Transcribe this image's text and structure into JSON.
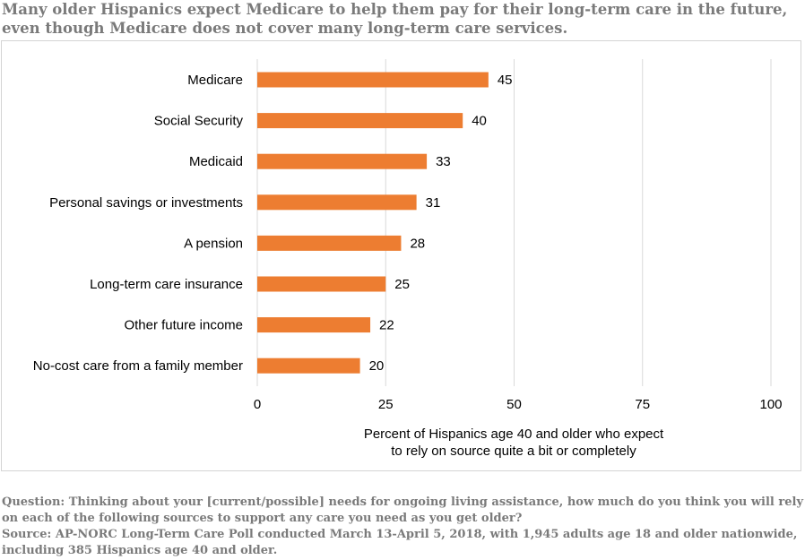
{
  "title": "Many older Hispanics expect Medicare to help them pay for their long-term care in the future, even though Medicare does not cover many long-term care services.",
  "footnote": {
    "question": "Question: Thinking about your [current/possible] needs for ongoing living assistance, how much do you think you will rely on each of the following sources to support any care you need as you get older?",
    "source": "Source: AP-NORC Long-Term Care Poll conducted March 13-April 5, 2018, with 1,945 adults age 18 and older nationwide, including 385 Hispanics age 40 and older."
  },
  "colors": {
    "bar": "#ed7d31",
    "grid": "#d9d9d9",
    "text": "#000000"
  },
  "chart_data": {
    "type": "bar",
    "orientation": "horizontal",
    "categories": [
      "Medicare",
      "Social Security",
      "Medicaid",
      "Personal savings or investments",
      "A pension",
      "Long-term care insurance",
      "Other future income",
      "No-cost care from a family member"
    ],
    "values": [
      45,
      40,
      33,
      31,
      28,
      25,
      22,
      20
    ],
    "xlim": [
      0,
      100
    ],
    "xticks": [
      0,
      25,
      50,
      75,
      100
    ],
    "xlabel": "Percent of Hispanics age 40 and older who expect to rely on  source quite a bit or completely",
    "xlabel_lines": [
      "Percent of Hispanics age 40 and older who expect",
      "to rely on  source quite a bit or completely"
    ],
    "grid": true,
    "legend": "none",
    "data_labels": true
  }
}
